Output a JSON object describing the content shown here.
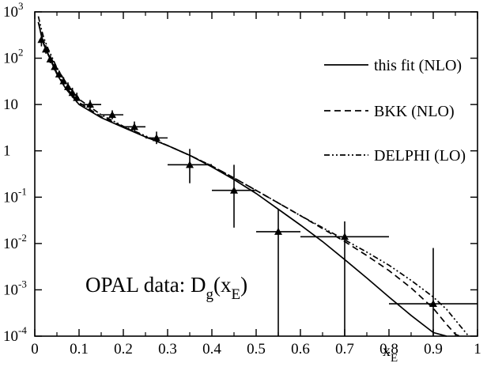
{
  "chart_data": {
    "type": "line",
    "xlabel": "x",
    "xlabel_sub": "E",
    "xlim": [
      0,
      1
    ],
    "ylim": [
      0.0001,
      1000
    ],
    "yscale": "log",
    "x_ticks": [
      "0",
      "0.1",
      "0.2",
      "0.3",
      "0.4",
      "0.5",
      "0.6",
      "0.7",
      "0.8",
      "0.9",
      "1"
    ],
    "y_ticks": [
      {
        "value": 1000,
        "base": "10",
        "exp": "3"
      },
      {
        "value": 100,
        "base": "10",
        "exp": "2"
      },
      {
        "value": 10,
        "base": "10",
        "exp": ""
      },
      {
        "value": 1,
        "base": "1",
        "exp": ""
      },
      {
        "value": 0.1,
        "base": "10",
        "exp": "-1"
      },
      {
        "value": 0.01,
        "base": "10",
        "exp": "-2"
      },
      {
        "value": 0.001,
        "base": "10",
        "exp": "-3"
      },
      {
        "value": 0.0001,
        "base": "10",
        "exp": "-4"
      }
    ],
    "annotation": {
      "main": "OPAL data: D",
      "sub": "g",
      "open": "(x",
      "sub2": "E",
      "close": ")"
    },
    "legend": [
      {
        "label": "this fit (NLO)",
        "style": "solid"
      },
      {
        "label": "BKK (NLO)",
        "style": "dashed"
      },
      {
        "label": "DELPHI (LO)",
        "style": "dashdotdot"
      }
    ],
    "series": [
      {
        "name": "this fit (NLO)",
        "style": "solid",
        "x": [
          0.008,
          0.015,
          0.02,
          0.03,
          0.05,
          0.07,
          0.1,
          0.15,
          0.2,
          0.25,
          0.3,
          0.35,
          0.4,
          0.45,
          0.5,
          0.55,
          0.6,
          0.65,
          0.7,
          0.75,
          0.8,
          0.85,
          0.9,
          0.93
        ],
        "y": [
          600,
          300,
          200,
          120,
          45,
          22,
          10,
          5.2,
          3.2,
          2.0,
          1.3,
          0.8,
          0.45,
          0.24,
          0.12,
          0.055,
          0.025,
          0.011,
          0.0045,
          0.0018,
          0.0007,
          0.00028,
          0.00012,
          0.0001
        ]
      },
      {
        "name": "BKK (NLO)",
        "style": "dashed",
        "x": [
          0.008,
          0.015,
          0.02,
          0.03,
          0.05,
          0.07,
          0.1,
          0.15,
          0.2,
          0.25,
          0.3,
          0.35,
          0.4,
          0.45,
          0.5,
          0.55,
          0.6,
          0.65,
          0.7,
          0.75,
          0.8,
          0.85,
          0.9,
          0.93,
          0.95,
          0.96
        ],
        "y": [
          600,
          320,
          210,
          125,
          48,
          24,
          11,
          5.5,
          3.3,
          2.0,
          1.3,
          0.8,
          0.47,
          0.26,
          0.14,
          0.075,
          0.04,
          0.021,
          0.011,
          0.0055,
          0.0026,
          0.0011,
          0.0004,
          0.00018,
          0.00011,
          0.0001
        ]
      },
      {
        "name": "DELPHI (LO)",
        "style": "dashdotdot",
        "x": [
          0.008,
          0.015,
          0.02,
          0.03,
          0.05,
          0.07,
          0.1,
          0.15,
          0.2,
          0.25,
          0.3,
          0.35,
          0.4,
          0.45,
          0.5,
          0.55,
          0.6,
          0.65,
          0.7,
          0.75,
          0.8,
          0.85,
          0.9,
          0.93,
          0.96,
          0.98
        ],
        "y": [
          800,
          420,
          280,
          160,
          62,
          30,
          13,
          6.0,
          3.4,
          2.1,
          1.3,
          0.8,
          0.47,
          0.26,
          0.14,
          0.075,
          0.04,
          0.022,
          0.012,
          0.0065,
          0.0034,
          0.0016,
          0.0007,
          0.00038,
          0.00017,
          0.0001
        ]
      }
    ],
    "data_points": [
      {
        "x": 0.015,
        "y": 250,
        "xerr": 0.005,
        "ylo": 180,
        "yhi": 330
      },
      {
        "x": 0.025,
        "y": 155,
        "xerr": 0.005,
        "ylo": 125,
        "yhi": 190
      },
      {
        "x": 0.035,
        "y": 95,
        "xerr": 0.005,
        "ylo": 78,
        "yhi": 115
      },
      {
        "x": 0.045,
        "y": 65,
        "xerr": 0.005,
        "ylo": 54,
        "yhi": 78
      },
      {
        "x": 0.055,
        "y": 45,
        "xerr": 0.005,
        "ylo": 37,
        "yhi": 54
      },
      {
        "x": 0.065,
        "y": 32,
        "xerr": 0.005,
        "ylo": 26,
        "yhi": 39
      },
      {
        "x": 0.075,
        "y": 24,
        "xerr": 0.005,
        "ylo": 19,
        "yhi": 30
      },
      {
        "x": 0.085,
        "y": 18,
        "xerr": 0.005,
        "ylo": 14,
        "yhi": 23
      },
      {
        "x": 0.095,
        "y": 14,
        "xerr": 0.005,
        "ylo": 11,
        "yhi": 18
      },
      {
        "x": 0.125,
        "y": 10,
        "xerr": 0.025,
        "ylo": 8,
        "yhi": 12.5
      },
      {
        "x": 0.175,
        "y": 6,
        "xerr": 0.025,
        "ylo": 4.8,
        "yhi": 7.5
      },
      {
        "x": 0.225,
        "y": 3.3,
        "xerr": 0.025,
        "ylo": 2.5,
        "yhi": 4.3
      },
      {
        "x": 0.275,
        "y": 1.9,
        "xerr": 0.025,
        "ylo": 1.4,
        "yhi": 2.6
      },
      {
        "x": 0.35,
        "y": 0.5,
        "xerr": 0.05,
        "ylo": 0.2,
        "yhi": 1.1
      },
      {
        "x": 0.45,
        "y": 0.14,
        "xerr": 0.05,
        "ylo": 0.022,
        "yhi": 0.5
      },
      {
        "x": 0.55,
        "y": 0.018,
        "xerr": 0.05,
        "ylo": 0.0001,
        "yhi": 0.055
      },
      {
        "x": 0.7,
        "y": 0.014,
        "xerr": 0.1,
        "ylo": 0.0001,
        "yhi": 0.03
      },
      {
        "x": 0.9,
        "y": 0.0005,
        "xerr": 0.1,
        "ylo": 0.0001,
        "yhi": 0.008
      }
    ]
  }
}
